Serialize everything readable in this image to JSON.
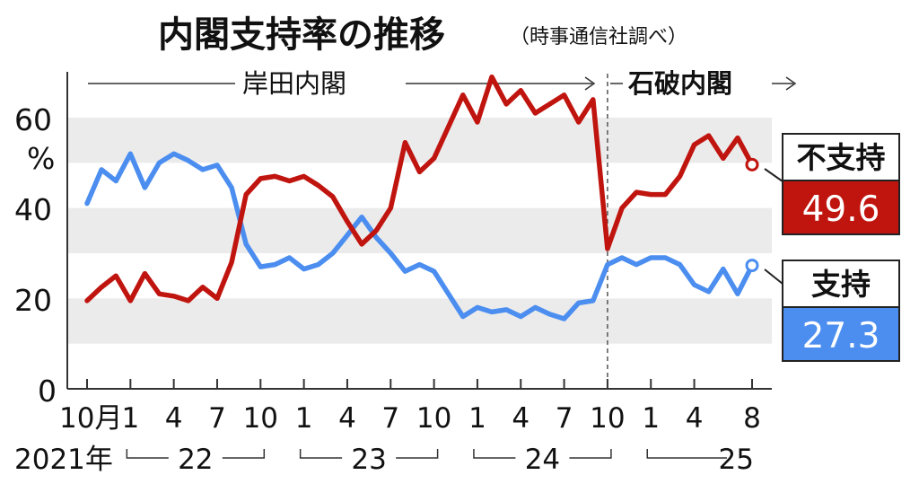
{
  "title": "内閣支持率の推移",
  "subtitle": "（時事通信社調べ）",
  "eras": [
    {
      "label": "岸田内閣"
    },
    {
      "label": "石破内閣"
    }
  ],
  "unit": "%",
  "colors": {
    "disapprove": "#c0140f",
    "approve": "#4b8ef0",
    "band": "#ebebeb",
    "text": "#111111"
  },
  "chart_data": {
    "type": "line",
    "y_ticks": [
      "60",
      "40",
      "20",
      "0"
    ],
    "ylim": [
      0,
      70
    ],
    "x_tick_labels": [
      "10月",
      "1",
      "4",
      "7",
      "10",
      "1",
      "4",
      "7",
      "10",
      "1",
      "4",
      "7",
      "10",
      "1",
      "4",
      "8"
    ],
    "year_labels": [
      "2021年",
      "22",
      "23",
      "24",
      "25"
    ],
    "x_start": "2021-10",
    "x_end": "2025-08",
    "series": [
      {
        "name": "不支持",
        "latest_label": "49.6",
        "values": [
          19.5,
          22.5,
          25,
          19.5,
          25.5,
          21,
          20.5,
          19.5,
          22.5,
          20,
          28,
          43,
          46.5,
          47,
          46,
          47,
          45,
          42.5,
          37,
          32,
          35,
          40,
          54.5,
          48,
          51,
          58,
          65,
          59,
          69,
          63,
          66,
          61,
          63,
          65,
          59,
          64,
          31,
          40,
          43.5,
          43,
          43,
          47,
          54,
          56,
          51,
          55.5,
          49.6
        ]
      },
      {
        "name": "支持",
        "latest_label": "27.3",
        "values": [
          41,
          48.5,
          46,
          52,
          44.5,
          50,
          52,
          50.5,
          48.5,
          49.5,
          44.5,
          32,
          27,
          27.5,
          29,
          26.5,
          27.5,
          30,
          34,
          38,
          33.5,
          30,
          26,
          27.5,
          26,
          21,
          16,
          18,
          17,
          17.5,
          16,
          18,
          16.5,
          15.5,
          19,
          19.5,
          27.5,
          29,
          27.5,
          29,
          29,
          27.5,
          23,
          21.5,
          26.5,
          21,
          27.3
        ]
      }
    ]
  }
}
